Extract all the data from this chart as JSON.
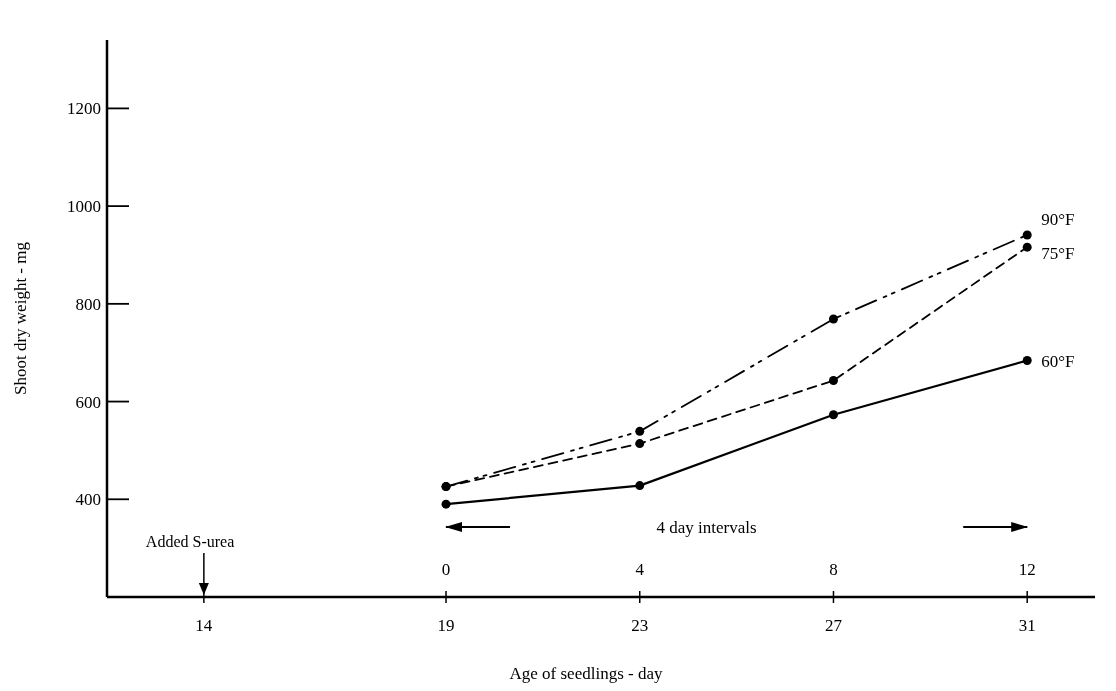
{
  "chart_data": {
    "type": "line",
    "xlabel": "Age of seedlings - day",
    "ylabel": "Shoot dry weight - mg",
    "x": [
      19,
      23,
      27,
      31
    ],
    "series": [
      {
        "name": "60°F",
        "color": "#000000",
        "line_style": "solid",
        "values": [
          390,
          428,
          573,
          684
        ]
      },
      {
        "name": "75°F",
        "color": "#000000",
        "line_style": "dashed",
        "values": [
          426,
          514,
          643,
          916
        ]
      },
      {
        "name": "90°F",
        "color": "#000000",
        "line_style": "dashdot",
        "values": [
          426,
          539,
          769,
          941
        ]
      }
    ],
    "xlim": [
      12,
      32.4
    ],
    "xticks": [
      14,
      19,
      23,
      27,
      31
    ],
    "x2lim": [
      -7,
      13.4
    ],
    "x2ticks": [
      0,
      4,
      8,
      12
    ],
    "ylim": [
      200,
      1340
    ],
    "yticks": [
      400,
      600,
      800,
      1000,
      1200
    ],
    "marker": "circle",
    "grid": false,
    "legend": false,
    "annotations": [
      "Added S-urea",
      "4 day intervals"
    ]
  }
}
